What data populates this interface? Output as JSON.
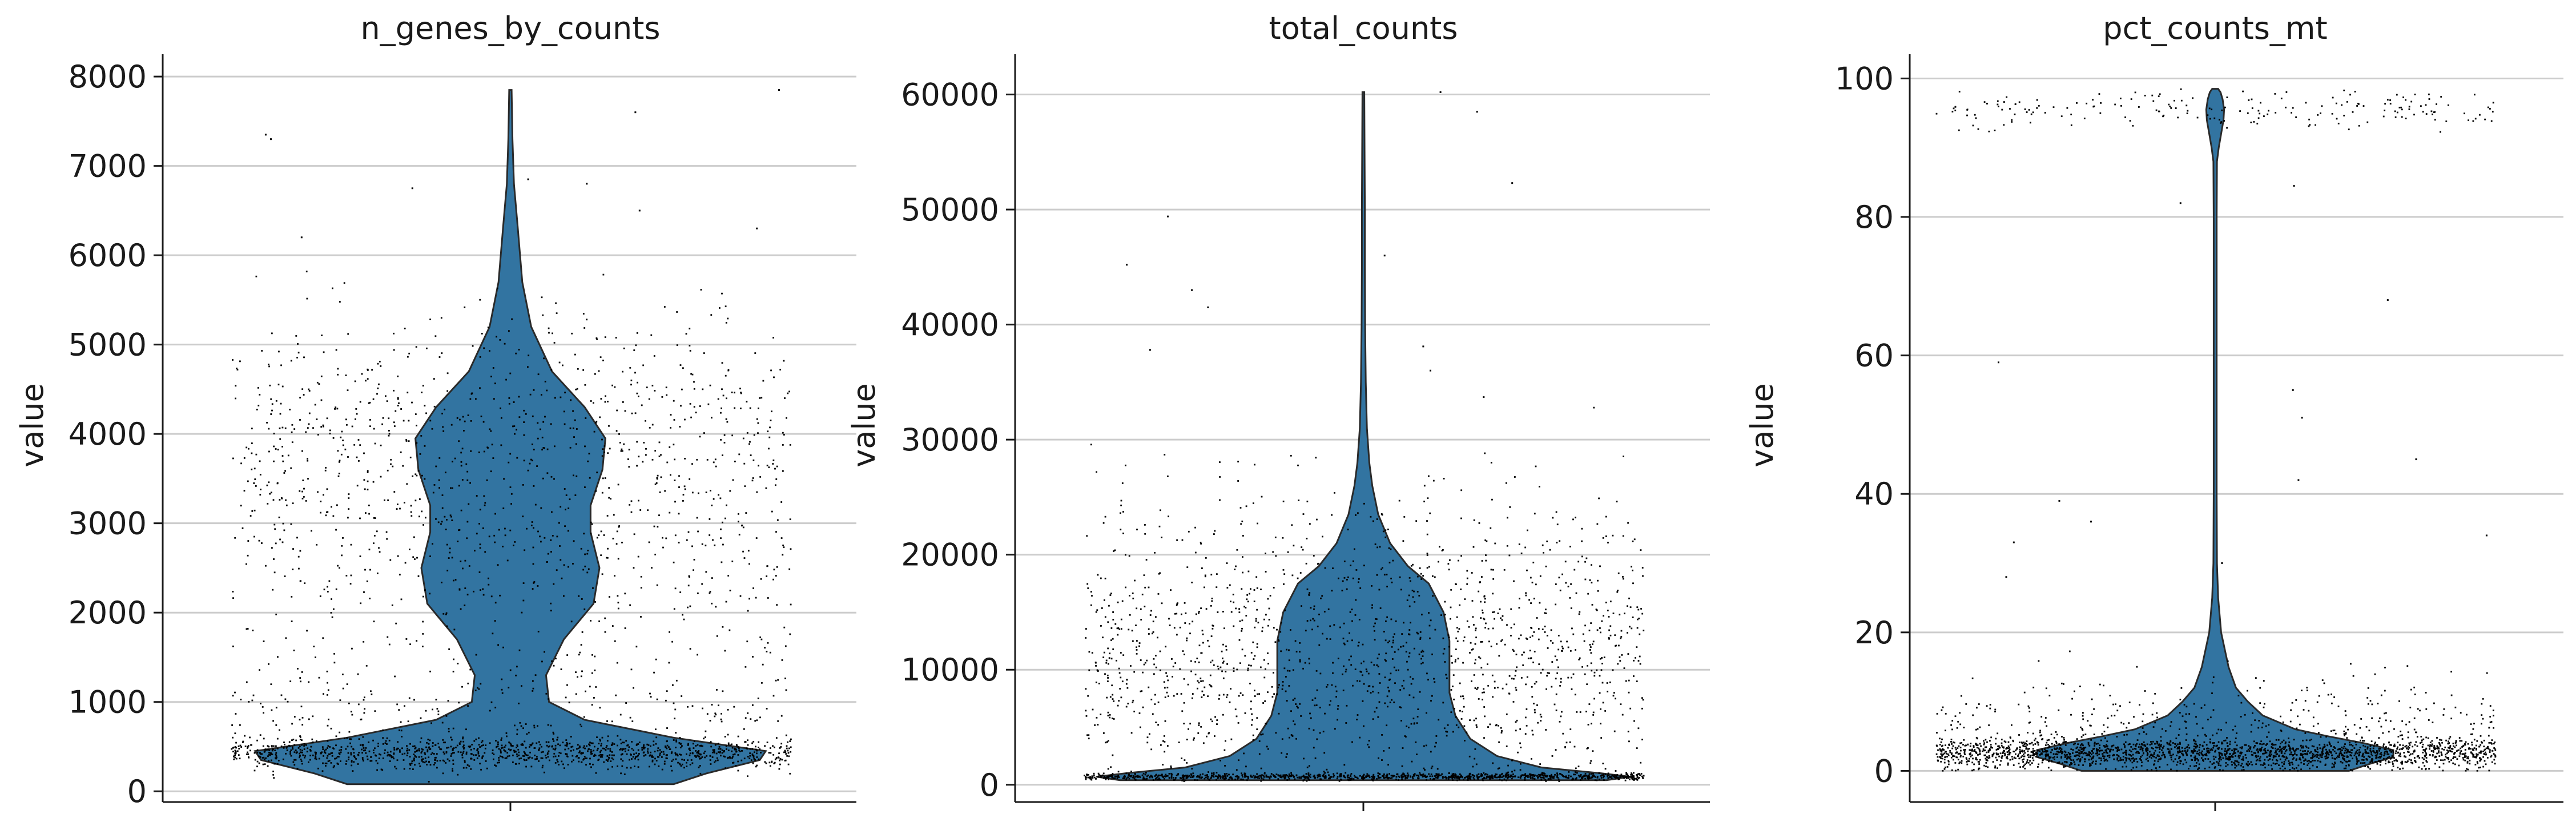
{
  "colors": {
    "violin_fill": "#3274a1",
    "violin_edge": "#2a2a2a",
    "points": "#000000",
    "grid": "#cccccc",
    "axis": "#1a1a1a",
    "background": "#ffffff"
  },
  "chart_data": [
    {
      "type": "violin",
      "title": "n_genes_by_counts",
      "ylabel": "value",
      "xlabel": "",
      "ylim": [
        -120,
        8250
      ],
      "yticks": [
        0,
        1000,
        2000,
        3000,
        4000,
        5000,
        6000,
        7000,
        8000
      ],
      "ytick_labels": [
        "0",
        "1000",
        "2000",
        "3000",
        "4000",
        "5000",
        "6000",
        "7000",
        "8000"
      ],
      "grid": true,
      "points_shown": true,
      "violin_range": [
        80,
        7850
      ],
      "violin_profile": [
        [
          80,
          0.55
        ],
        [
          200,
          0.66
        ],
        [
          350,
          0.84
        ],
        [
          450,
          0.86
        ],
        [
          600,
          0.55
        ],
        [
          800,
          0.25
        ],
        [
          1000,
          0.13
        ],
        [
          1300,
          0.12
        ],
        [
          1700,
          0.18
        ],
        [
          2100,
          0.28
        ],
        [
          2500,
          0.3
        ],
        [
          2900,
          0.27
        ],
        [
          3200,
          0.27
        ],
        [
          3600,
          0.31
        ],
        [
          3950,
          0.32
        ],
        [
          4300,
          0.25
        ],
        [
          4700,
          0.14
        ],
        [
          5200,
          0.07
        ],
        [
          5700,
          0.04
        ],
        [
          6300,
          0.025
        ],
        [
          6800,
          0.012
        ],
        [
          7300,
          0.007
        ],
        [
          7850,
          0.004
        ]
      ],
      "scatter_components": [
        {
          "weight": 0.45,
          "mean": 430,
          "sd": 90
        },
        {
          "weight": 0.1,
          "mean": 1000,
          "sd": 350
        },
        {
          "weight": 0.2,
          "mean": 2700,
          "sd": 700
        },
        {
          "weight": 0.25,
          "mean": 4100,
          "sd": 650
        }
      ],
      "scatter_min": 80,
      "scatter_max": 7850,
      "point_count": 2600,
      "outliers": [
        7850,
        7600,
        7350,
        7300,
        6850,
        6750,
        6800,
        6500,
        6300,
        6200
      ]
    },
    {
      "type": "violin",
      "title": "total_counts",
      "ylabel": "value",
      "xlabel": "",
      "ylim": [
        -1500,
        63500
      ],
      "yticks": [
        0,
        10000,
        20000,
        30000,
        40000,
        50000,
        60000
      ],
      "ytick_labels": [
        "0",
        "10000",
        "20000",
        "30000",
        "40000",
        "50000",
        "60000"
      ],
      "grid": true,
      "points_shown": true,
      "violin_range": [
        400,
        60200
      ],
      "violin_profile": [
        [
          400,
          0.82
        ],
        [
          700,
          0.9
        ],
        [
          1000,
          0.8
        ],
        [
          1500,
          0.6
        ],
        [
          2500,
          0.45
        ],
        [
          4000,
          0.36
        ],
        [
          6000,
          0.31
        ],
        [
          8000,
          0.29
        ],
        [
          10000,
          0.29
        ],
        [
          12500,
          0.29
        ],
        [
          15000,
          0.27
        ],
        [
          17500,
          0.22
        ],
        [
          19000,
          0.15
        ],
        [
          21000,
          0.09
        ],
        [
          23500,
          0.05
        ],
        [
          26000,
          0.03
        ],
        [
          28000,
          0.02
        ],
        [
          31000,
          0.012
        ],
        [
          35000,
          0.008
        ],
        [
          40000,
          0.006
        ],
        [
          45000,
          0.005
        ],
        [
          50000,
          0.005
        ],
        [
          55000,
          0.004
        ],
        [
          60200,
          0.003
        ]
      ],
      "scatter_components": [
        {
          "weight": 0.4,
          "mean": 700,
          "sd": 150
        },
        {
          "weight": 0.35,
          "mean": 9000,
          "sd": 5000
        },
        {
          "weight": 0.25,
          "mean": 15000,
          "sd": 5500
        }
      ],
      "scatter_min": 300,
      "scatter_max": 60200,
      "point_count": 2600,
      "outliers": [
        60200,
        58500,
        52300,
        49400,
        46000,
        45200,
        43000,
        41500,
        38100,
        37800,
        36000,
        33700
      ]
    },
    {
      "type": "violin",
      "title": "pct_counts_mt",
      "ylabel": "value",
      "xlabel": "",
      "ylim": [
        -4.5,
        103.5
      ],
      "yticks": [
        0,
        20,
        40,
        60,
        80,
        100
      ],
      "ytick_labels": [
        "0",
        "20",
        "40",
        "60",
        "80",
        "100"
      ],
      "grid": true,
      "points_shown": true,
      "violin_range": [
        0,
        98.5
      ],
      "violin_profile": [
        [
          0,
          0.45
        ],
        [
          1,
          0.52
        ],
        [
          2,
          0.6
        ],
        [
          3,
          0.6
        ],
        [
          4,
          0.5
        ],
        [
          5,
          0.38
        ],
        [
          6,
          0.27
        ],
        [
          8,
          0.16
        ],
        [
          10,
          0.11
        ],
        [
          12,
          0.07
        ],
        [
          15,
          0.045
        ],
        [
          20,
          0.02
        ],
        [
          25,
          0.01
        ],
        [
          30,
          0.006
        ],
        [
          40,
          0.005
        ],
        [
          50,
          0.005
        ],
        [
          60,
          0.005
        ],
        [
          70,
          0.005
        ],
        [
          80,
          0.005
        ],
        [
          88,
          0.006
        ],
        [
          90,
          0.012
        ],
        [
          92,
          0.02
        ],
        [
          94,
          0.028
        ],
        [
          95.5,
          0.03
        ],
        [
          97,
          0.025
        ],
        [
          98,
          0.018
        ],
        [
          98.5,
          0.01
        ]
      ],
      "scatter_components": [
        {
          "weight": 0.72,
          "mean": 2.6,
          "sd": 1.0
        },
        {
          "weight": 0.2,
          "mean": 5.0,
          "sd": 4.5
        },
        {
          "weight": 0.08,
          "mean": 95.5,
          "sd": 1.4
        }
      ],
      "scatter_min": 0,
      "scatter_max": 98.5,
      "point_count": 2600,
      "outliers": [
        84.5,
        82,
        68,
        59,
        55,
        51,
        45,
        42,
        39,
        36,
        34,
        33,
        30,
        28
      ]
    }
  ]
}
